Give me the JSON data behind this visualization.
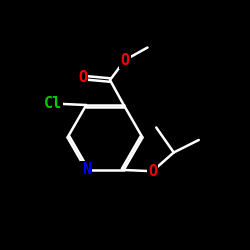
{
  "bg_color": "#000000",
  "atom_colors": {
    "C": "#ffffff",
    "N": "#0000ff",
    "O": "#ff0000",
    "Cl": "#00cc00"
  },
  "bond_color": "#ffffff",
  "bond_width": 1.8,
  "font_size_atoms": 11,
  "title": ""
}
